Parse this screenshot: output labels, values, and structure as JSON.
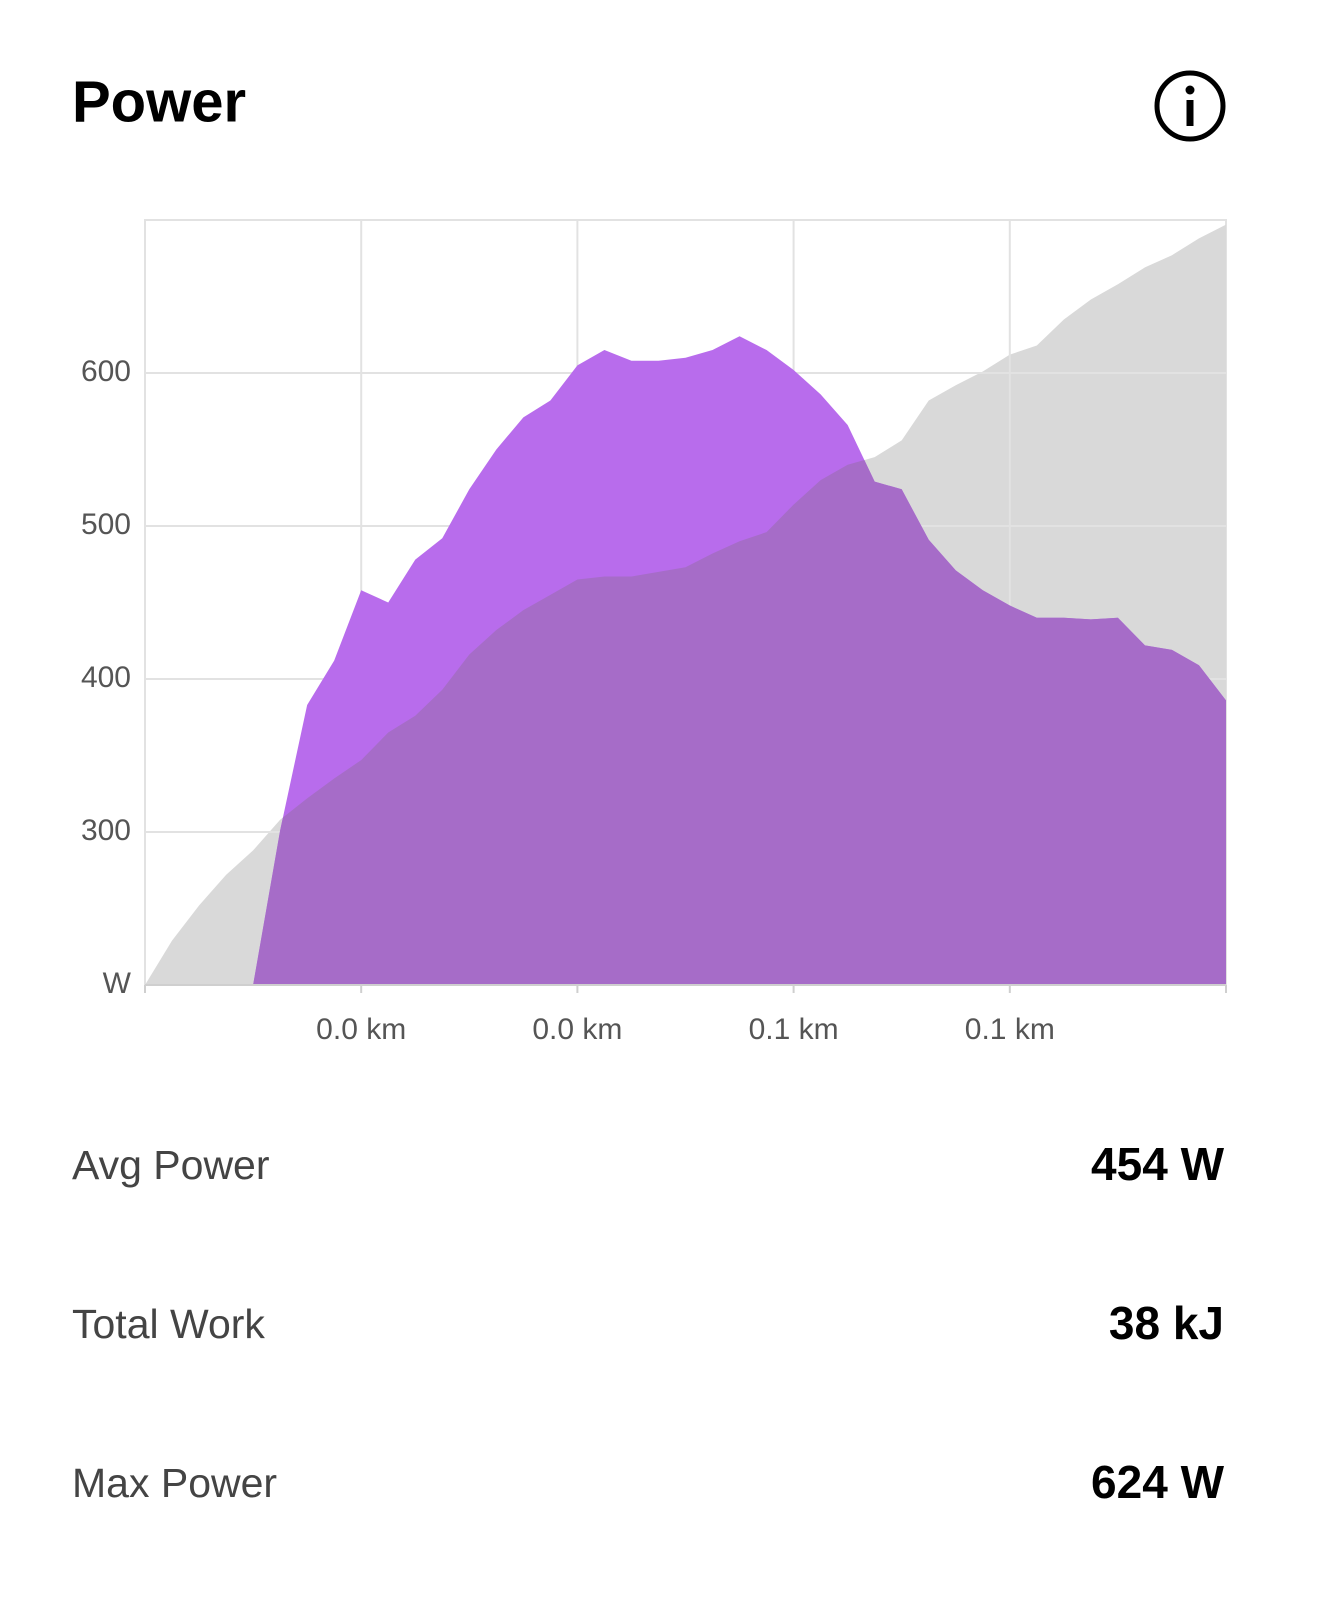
{
  "header": {
    "title": "Power"
  },
  "chart_data": {
    "type": "area",
    "xlim": [
      0,
      0.1
    ],
    "xticks": [
      {
        "value": 0.02,
        "label": "0.0 km"
      },
      {
        "value": 0.04,
        "label": "0.0 km"
      },
      {
        "value": 0.06,
        "label": "0.1 km"
      },
      {
        "value": 0.08,
        "label": "0.1 km"
      }
    ],
    "ylim": [
      200,
      700
    ],
    "yticks": [
      {
        "value": 200,
        "label": "W"
      },
      300,
      400,
      500,
      600
    ],
    "grid": true,
    "x": [
      0,
      0.0025,
      0.005,
      0.0075,
      0.01,
      0.0125,
      0.015,
      0.0175,
      0.02,
      0.0225,
      0.025,
      0.0275,
      0.03,
      0.0325,
      0.035,
      0.0375,
      0.04,
      0.0425,
      0.045,
      0.0475,
      0.05,
      0.0525,
      0.055,
      0.0575,
      0.06,
      0.0625,
      0.065,
      0.0675,
      0.07,
      0.0725,
      0.075,
      0.0775,
      0.08,
      0.0825,
      0.085,
      0.0875,
      0.09,
      0.0925,
      0.095,
      0.0975,
      0.1
    ],
    "series": [
      {
        "color": "#d9d9d9",
        "values": [
          200,
          229,
          252,
          272,
          288,
          308,
          322,
          335,
          347,
          365,
          376,
          393,
          416,
          432,
          445,
          455,
          465,
          467,
          467,
          470,
          473,
          482,
          490,
          496,
          514,
          530,
          540,
          545,
          556,
          582,
          592,
          601,
          612,
          618,
          635,
          648,
          658,
          669,
          677,
          688,
          697
        ]
      },
      {
        "color": "#b86cec",
        "values": [
          null,
          null,
          null,
          null,
          200,
          301,
          383,
          412,
          458,
          450,
          478,
          492,
          524,
          550,
          571,
          582,
          605,
          615,
          608,
          608,
          610,
          615,
          624,
          615,
          602,
          586,
          566,
          529,
          524,
          491,
          471,
          458,
          448,
          440,
          440,
          439,
          440,
          422,
          419,
          409,
          386
        ]
      }
    ]
  },
  "stats": [
    {
      "label": "Avg Power",
      "value": "454 W"
    },
    {
      "label": "Total Work",
      "value": "38 kJ"
    },
    {
      "label": "Max Power",
      "value": "624 W"
    }
  ]
}
